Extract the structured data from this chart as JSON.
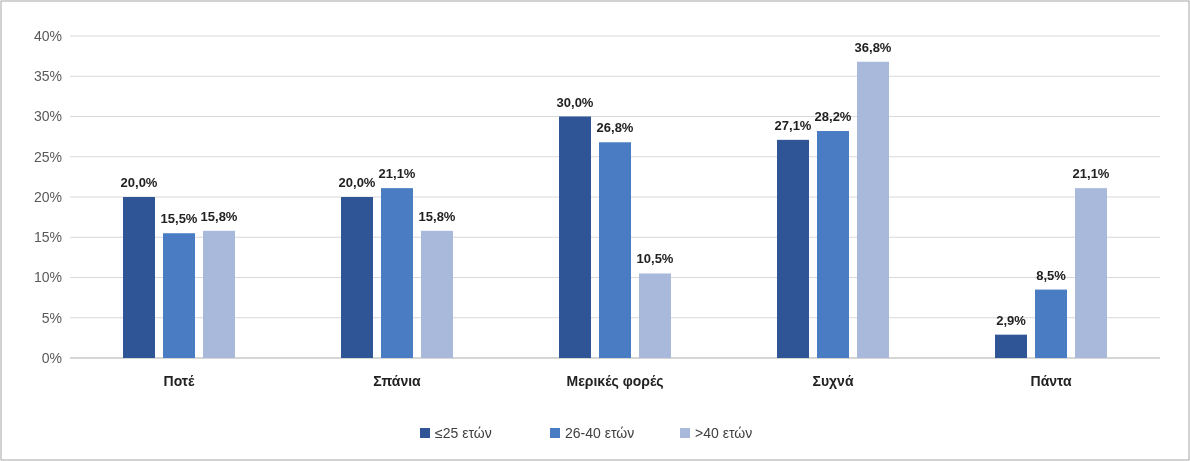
{
  "chart_data": {
    "type": "bar",
    "categories": [
      "Ποτέ",
      "Σπάνια",
      "Μερικές φορές",
      "Συχνά",
      "Πάντα"
    ],
    "series": [
      {
        "name": "≤25 ετών",
        "color": "#2f5597",
        "values": [
          20.0,
          20.0,
          30.0,
          27.1,
          2.9
        ],
        "value_labels": [
          "20,0%",
          "20,0%",
          "30,0%",
          "27,1%",
          "2,9%"
        ]
      },
      {
        "name": "26-40 ετών",
        "color": "#4a7cc4",
        "values": [
          15.5,
          21.1,
          26.8,
          28.2,
          8.5
        ],
        "value_labels": [
          "15,5%",
          "21,1%",
          "26,8%",
          "28,2%",
          "8,5%"
        ]
      },
      {
        "name": ">40 ετών",
        "color": "#a9b9dc",
        "values": [
          15.8,
          15.8,
          10.5,
          36.8,
          21.1
        ],
        "value_labels": [
          "15,8%",
          "15,8%",
          "10,5%",
          "36,8%",
          "21,1%"
        ]
      }
    ],
    "ylim": [
      0,
      40
    ],
    "yticks": [
      {
        "value": 0,
        "label": "0%"
      },
      {
        "value": 5,
        "label": "5%"
      },
      {
        "value": 10,
        "label": "10%"
      },
      {
        "value": 15,
        "label": "15%"
      },
      {
        "value": 20,
        "label": "20%"
      },
      {
        "value": 25,
        "label": "25%"
      },
      {
        "value": 30,
        "label": "30%"
      },
      {
        "value": 35,
        "label": "35%"
      },
      {
        "value": 40,
        "label": "40%"
      }
    ],
    "grid": "y",
    "legend": "bottom"
  }
}
